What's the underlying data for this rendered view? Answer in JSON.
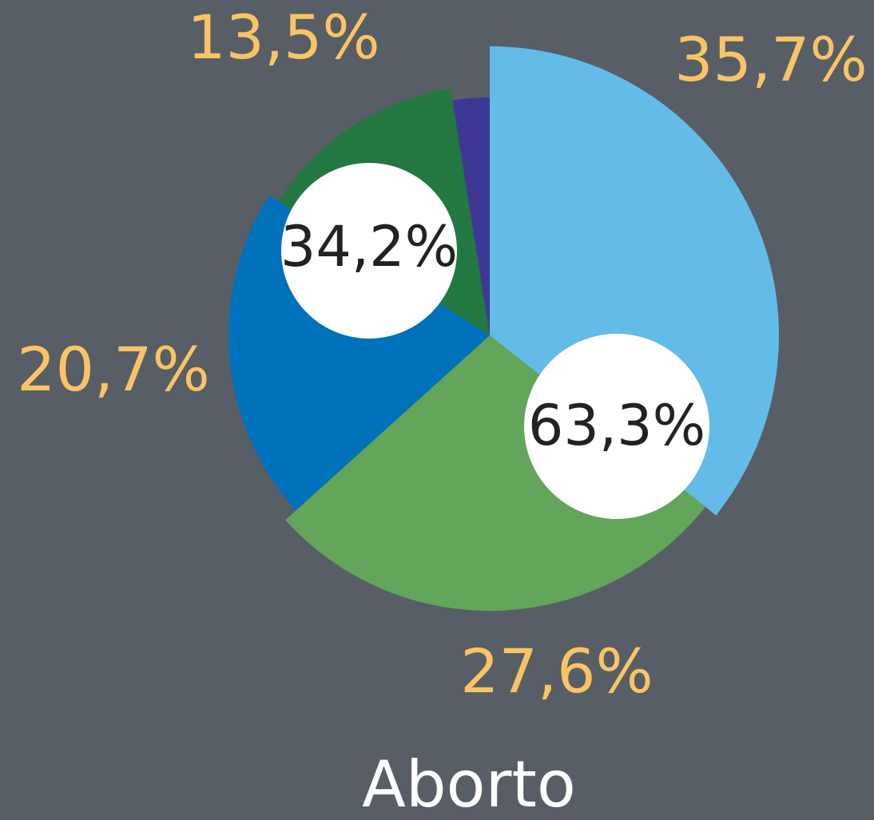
{
  "chart_data": {
    "type": "pie",
    "title": "Aborto",
    "values": [
      35.7,
      27.6,
      20.7,
      13.5,
      2.5
    ],
    "value_labels": [
      "35,7%",
      "27,6%",
      "20,7%",
      "13,5%",
      null
    ],
    "colors": [
      "#63bbe8",
      "#63a55a",
      "#0071bb",
      "#237741",
      "#3d3895"
    ],
    "annotations": [
      "34,2%",
      "63,3%"
    ]
  }
}
